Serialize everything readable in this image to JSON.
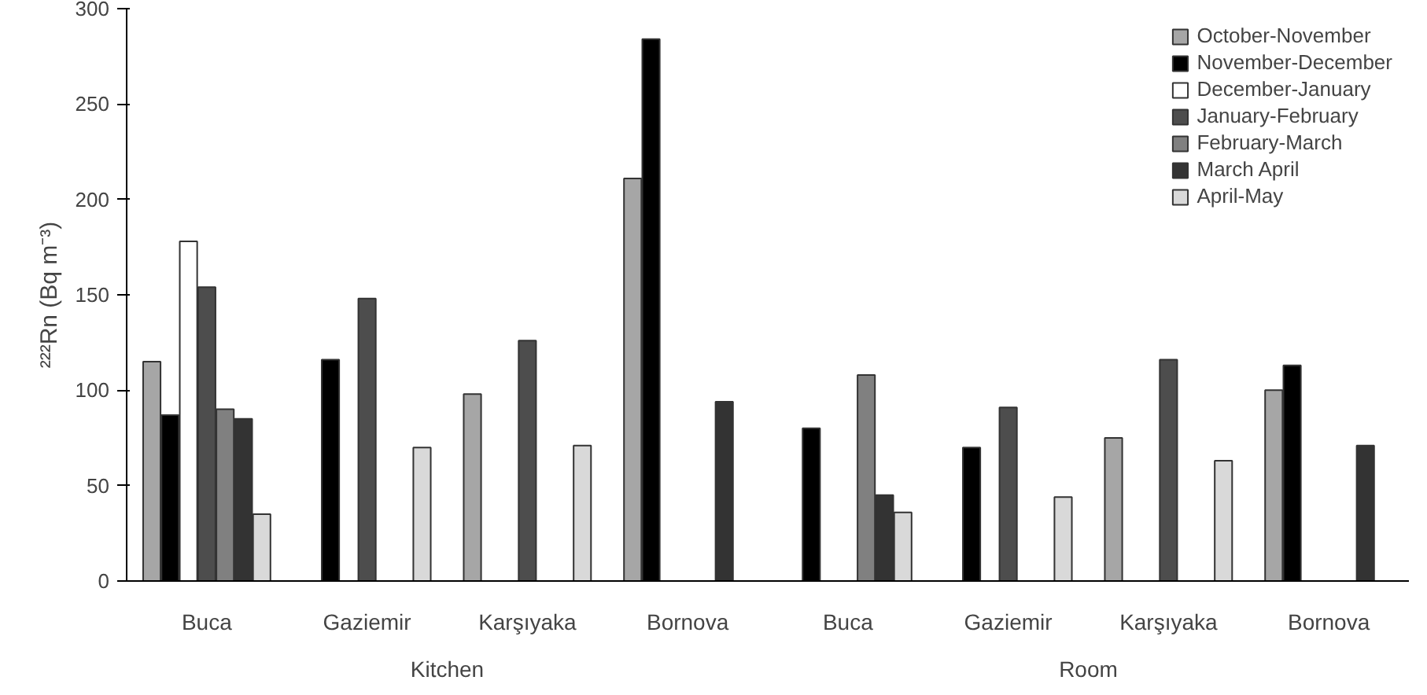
{
  "chart_data": {
    "type": "bar",
    "ylabel": "²²²Rn (Bq m⁻³)",
    "categories": [
      "Buca",
      "Gaziemir",
      "Karşıyaka",
      "Bornova",
      "Buca",
      "Gaziemir",
      "Karşıyaka",
      "Bornova"
    ],
    "annotations": [
      "Kitchen",
      "Room"
    ],
    "series": [
      {
        "name": "October-November",
        "color": "#a6a6a6",
        "values": [
          115,
          null,
          98,
          211,
          null,
          null,
          75,
          100
        ]
      },
      {
        "name": "November-December",
        "color": "#000000",
        "values": [
          87,
          116,
          null,
          284,
          80,
          70,
          null,
          113
        ]
      },
      {
        "name": "December-January",
        "color": "#ffffff",
        "values": [
          178,
          null,
          null,
          null,
          null,
          null,
          null,
          null
        ]
      },
      {
        "name": "January-February",
        "color": "#4d4d4d",
        "values": [
          154,
          148,
          126,
          null,
          null,
          91,
          116,
          null
        ]
      },
      {
        "name": "February-March",
        "color": "#808080",
        "values": [
          90,
          null,
          null,
          null,
          108,
          null,
          null,
          null
        ]
      },
      {
        "name": "March April",
        "color": "#333333",
        "values": [
          85,
          null,
          null,
          94,
          45,
          null,
          null,
          71
        ]
      },
      {
        "name": "April-May",
        "color": "#d9d9d9",
        "values": [
          35,
          70,
          71,
          null,
          36,
          44,
          63,
          null
        ]
      }
    ],
    "ylim": [
      0,
      300
    ],
    "yticks": [
      0,
      50,
      100,
      150,
      200,
      250,
      300
    ],
    "grid": false,
    "legend": "top right"
  }
}
